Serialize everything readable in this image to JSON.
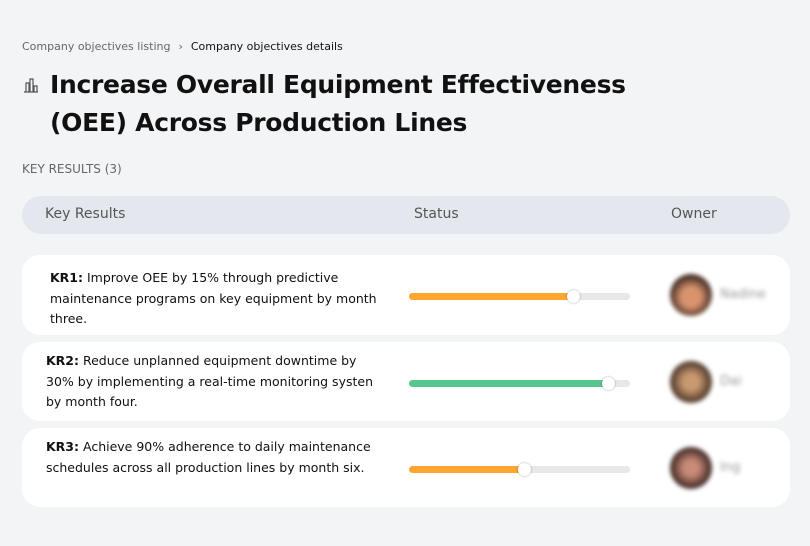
{
  "breadcrumb": {
    "parent": "Company objectives listing",
    "separator": "›",
    "current": "Company objectives details"
  },
  "title": "Increase Overall Equipment Effectiveness (OEE) Across Production Lines",
  "key_results_label": "KEY RESULTS (3)",
  "table_headers": {
    "key_results": "Key Results",
    "status": "Status",
    "owner": "Owner"
  },
  "rows": [
    {
      "id": "KR1:",
      "text": " Improve OEE by 15% through predictive maintenance programs on key equipment by month three.",
      "progress": 74,
      "color": "#ffa630",
      "owner": "Nadine"
    },
    {
      "id": "KR2:",
      "text": " Reduce unplanned equipment downtime by 30% by implementing a real-time monitoring systen by month four.",
      "progress": 90,
      "color": "#58c68f",
      "owner": "Dai"
    },
    {
      "id": "KR3:",
      "text": " Achieve 90% adherence to daily maintenance schedules across all production lines by month six.",
      "progress": 52,
      "color": "#ffa630",
      "owner": "Ing"
    }
  ]
}
